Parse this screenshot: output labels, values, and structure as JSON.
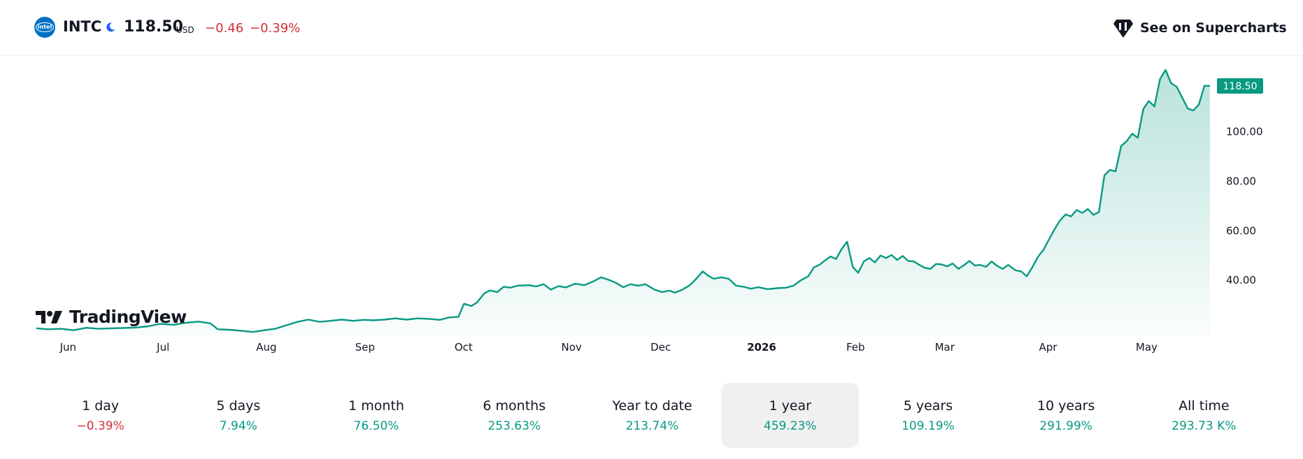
{
  "header": {
    "logo_text": "intel",
    "symbol": "INTC",
    "price": "118.50",
    "currency": "USD",
    "change": "−0.46",
    "change_pct": "−0.39%",
    "supercharts_label": "See on Supercharts"
  },
  "watermark": "TradingView",
  "colors": {
    "line": "#089981",
    "negative": "#d32f3c",
    "positive": "#089981"
  },
  "chart_data": {
    "type": "area",
    "title": "",
    "xlabel": "",
    "ylabel": "",
    "ylim": [
      20,
      125
    ],
    "y_ticks": [
      "40.00",
      "60.00",
      "80.00",
      "100.00"
    ],
    "y_tick_values": [
      40,
      60,
      80,
      100
    ],
    "last_price_label": "118.50",
    "last_price": 118.5,
    "x_tick_labels": [
      {
        "label": "Jun",
        "t": 0.027,
        "bold": false
      },
      {
        "label": "Jul",
        "t": 0.108,
        "bold": false
      },
      {
        "label": "Aug",
        "t": 0.196,
        "bold": false
      },
      {
        "label": "Sep",
        "t": 0.28,
        "bold": false
      },
      {
        "label": "Oct",
        "t": 0.364,
        "bold": false
      },
      {
        "label": "Nov",
        "t": 0.456,
        "bold": false
      },
      {
        "label": "Dec",
        "t": 0.532,
        "bold": false
      },
      {
        "label": "2026",
        "t": 0.618,
        "bold": true
      },
      {
        "label": "Feb",
        "t": 0.698,
        "bold": false
      },
      {
        "label": "Mar",
        "t": 0.774,
        "bold": false
      },
      {
        "label": "Apr",
        "t": 0.862,
        "bold": false
      },
      {
        "label": "May",
        "t": 0.946,
        "bold": false
      }
    ],
    "series": [
      {
        "points": [
          [
            0.0,
            20.6
          ],
          [
            0.013,
            20.2
          ],
          [
            0.027,
            20.4
          ],
          [
            0.04,
            19.8
          ],
          [
            0.054,
            20.8
          ],
          [
            0.067,
            20.4
          ],
          [
            0.08,
            20.6
          ],
          [
            0.094,
            20.7
          ],
          [
            0.108,
            20.9
          ],
          [
            0.121,
            21.4
          ],
          [
            0.134,
            22.4
          ],
          [
            0.148,
            22.0
          ],
          [
            0.161,
            22.8
          ],
          [
            0.175,
            23.3
          ],
          [
            0.188,
            22.6
          ],
          [
            0.196,
            20.2
          ],
          [
            0.208,
            20.0
          ],
          [
            0.221,
            19.6
          ],
          [
            0.234,
            19.1
          ],
          [
            0.246,
            19.8
          ],
          [
            0.258,
            20.4
          ],
          [
            0.27,
            21.8
          ],
          [
            0.282,
            23.2
          ],
          [
            0.294,
            24.1
          ],
          [
            0.306,
            23.2
          ],
          [
            0.318,
            23.6
          ],
          [
            0.33,
            24.1
          ],
          [
            0.342,
            23.6
          ],
          [
            0.354,
            24.0
          ],
          [
            0.364,
            23.8
          ],
          [
            0.376,
            24.1
          ],
          [
            0.388,
            24.6
          ],
          [
            0.4,
            24.1
          ],
          [
            0.412,
            24.6
          ],
          [
            0.424,
            24.4
          ],
          [
            0.436,
            24.0
          ],
          [
            0.446,
            25.0
          ],
          [
            0.456,
            25.2
          ],
          [
            0.462,
            30.5
          ],
          [
            0.47,
            29.6
          ],
          [
            0.476,
            31.0
          ],
          [
            0.484,
            34.7
          ],
          [
            0.49,
            35.9
          ],
          [
            0.498,
            35.2
          ],
          [
            0.505,
            37.4
          ],
          [
            0.512,
            37.0
          ],
          [
            0.52,
            37.8
          ],
          [
            0.532,
            38.0
          ],
          [
            0.54,
            37.5
          ],
          [
            0.548,
            38.4
          ],
          [
            0.556,
            36.2
          ],
          [
            0.564,
            37.6
          ],
          [
            0.572,
            37.1
          ],
          [
            0.582,
            38.6
          ],
          [
            0.592,
            38.0
          ],
          [
            0.602,
            39.6
          ],
          [
            0.61,
            41.2
          ],
          [
            0.618,
            40.2
          ],
          [
            0.626,
            39.0
          ],
          [
            0.634,
            37.2
          ],
          [
            0.642,
            38.4
          ],
          [
            0.65,
            37.8
          ],
          [
            0.658,
            38.4
          ],
          [
            0.668,
            36.2
          ],
          [
            0.676,
            35.2
          ],
          [
            0.684,
            35.8
          ],
          [
            0.69,
            35.0
          ],
          [
            0.698,
            36.2
          ],
          [
            0.706,
            38.0
          ],
          [
            0.712,
            40.2
          ],
          [
            0.72,
            43.6
          ],
          [
            0.726,
            41.8
          ],
          [
            0.732,
            40.6
          ],
          [
            0.74,
            41.2
          ],
          [
            0.748,
            40.6
          ],
          [
            0.756,
            37.8
          ],
          [
            0.764,
            37.4
          ],
          [
            0.772,
            36.6
          ],
          [
            0.78,
            37.2
          ],
          [
            0.79,
            36.4
          ],
          [
            0.8,
            36.8
          ],
          [
            0.81,
            37.0
          ],
          [
            0.818,
            37.8
          ],
          [
            0.826,
            40.0
          ],
          [
            0.834,
            41.6
          ],
          [
            0.84,
            45.2
          ],
          [
            0.846,
            46.2
          ],
          [
            0.852,
            48.0
          ],
          [
            0.858,
            49.6
          ],
          [
            0.864,
            48.6
          ],
          [
            0.87,
            52.6
          ],
          [
            0.876,
            55.6
          ],
          [
            0.882,
            45.4
          ],
          [
            0.888,
            43.0
          ],
          [
            0.894,
            47.6
          ],
          [
            0.9,
            49.0
          ],
          [
            0.906,
            47.2
          ],
          [
            0.912,
            50.0
          ],
          [
            0.918,
            49.0
          ],
          [
            0.924,
            50.2
          ],
          [
            0.93,
            48.2
          ],
          [
            0.936,
            49.8
          ],
          [
            0.942,
            47.8
          ],
          [
            0.948,
            47.6
          ],
          [
            0.954,
            46.2
          ],
          [
            0.96,
            45.0
          ],
          [
            0.966,
            44.6
          ],
          [
            0.972,
            46.6
          ],
          [
            0.978,
            46.4
          ],
          [
            0.984,
            45.6
          ],
          [
            0.99,
            46.8
          ],
          [
            0.996,
            44.6
          ],
          [
            1.002,
            46.0
          ],
          [
            1.008,
            47.8
          ],
          [
            1.014,
            46.0
          ],
          [
            1.02,
            46.2
          ],
          [
            1.026,
            45.4
          ],
          [
            1.032,
            47.6
          ],
          [
            1.038,
            45.8
          ],
          [
            1.044,
            44.6
          ],
          [
            1.05,
            46.2
          ],
          [
            1.058,
            44.0
          ],
          [
            1.064,
            43.6
          ],
          [
            1.07,
            41.6
          ],
          [
            1.076,
            45.2
          ],
          [
            1.082,
            49.4
          ],
          [
            1.088,
            52.2
          ],
          [
            1.094,
            56.4
          ],
          [
            1.1,
            60.6
          ],
          [
            1.106,
            64.2
          ],
          [
            1.112,
            66.6
          ],
          [
            1.118,
            65.8
          ],
          [
            1.124,
            68.4
          ],
          [
            1.13,
            67.2
          ],
          [
            1.136,
            68.8
          ],
          [
            1.142,
            66.4
          ],
          [
            1.148,
            67.6
          ],
          [
            1.154,
            82.4
          ],
          [
            1.16,
            84.6
          ],
          [
            1.166,
            84.0
          ],
          [
            1.172,
            94.2
          ],
          [
            1.178,
            96.2
          ],
          [
            1.184,
            99.2
          ],
          [
            1.19,
            97.6
          ],
          [
            1.196,
            109.2
          ],
          [
            1.202,
            112.4
          ],
          [
            1.208,
            110.2
          ],
          [
            1.214,
            121.2
          ],
          [
            1.22,
            125.0
          ],
          [
            1.226,
            119.6
          ],
          [
            1.232,
            118.2
          ],
          [
            1.238,
            113.8
          ],
          [
            1.244,
            109.4
          ],
          [
            1.25,
            108.6
          ],
          [
            1.256,
            111.0
          ],
          [
            1.262,
            118.6
          ],
          [
            1.268,
            118.5
          ]
        ]
      }
    ]
  },
  "periods": [
    {
      "label": "1 day",
      "value": "−0.39%",
      "negative": true,
      "active": false
    },
    {
      "label": "5 days",
      "value": "7.94%",
      "negative": false,
      "active": false
    },
    {
      "label": "1 month",
      "value": "76.50%",
      "negative": false,
      "active": false
    },
    {
      "label": "6 months",
      "value": "253.63%",
      "negative": false,
      "active": false
    },
    {
      "label": "Year to date",
      "value": "213.74%",
      "negative": false,
      "active": false
    },
    {
      "label": "1 year",
      "value": "459.23%",
      "negative": false,
      "active": true
    },
    {
      "label": "5 years",
      "value": "109.19%",
      "negative": false,
      "active": false
    },
    {
      "label": "10 years",
      "value": "291.99%",
      "negative": false,
      "active": false
    },
    {
      "label": "All time",
      "value": "293.73 K%",
      "negative": false,
      "active": false
    }
  ]
}
